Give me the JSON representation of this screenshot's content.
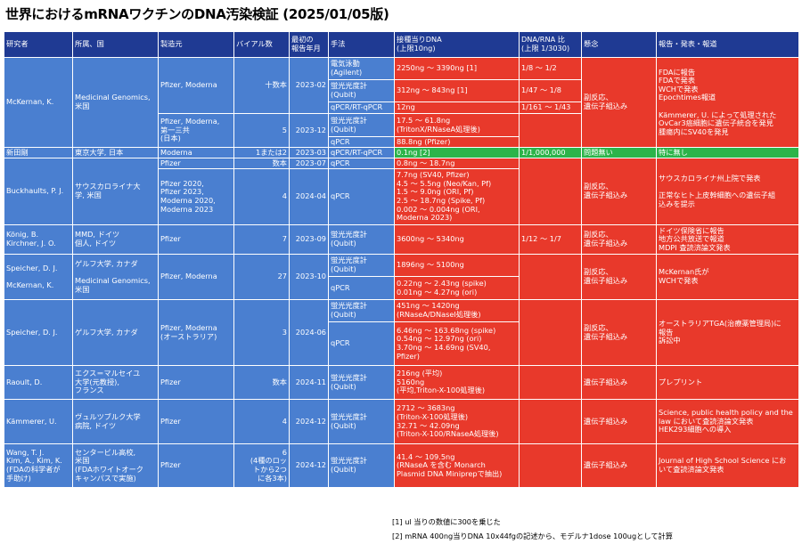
{
  "title": "世界におけるmRNAワクチンのDNA汚染検証 (2025/01/05版)",
  "headers": {
    "researcher": "研究者",
    "affiliation": "所属、国",
    "manufacturer": "製造元",
    "vials": "バイアル数",
    "date": "最初の\n報告年月",
    "method": "手法",
    "dna_per_dose": "接種当りDNA\n(上限10ng)",
    "ratio": "DNA/RNA 比\n(上限 1/3030)",
    "concern": "懸念",
    "report": "報告・発表・報道"
  },
  "rows": {
    "mckernan": {
      "researcher": "McKernan, K.",
      "affiliation": "Medicinal Genomics,\n米国",
      "mfr1": "Pfizer, Moderna",
      "vials1": "十数本",
      "date1": "2023-02",
      "m1": "電気泳動\n(Agilent)",
      "v1": "2250ng 〜 3390ng [1]",
      "r1": "1/8 〜 1/2",
      "m2": "蛍光光度計\n(Qubit)",
      "v2": "312ng 〜 843ng [1]",
      "r2": "1/47 〜 1/8",
      "m3": "qPCR/RT-qPCR",
      "v3": "12ng",
      "r3": "1/161 〜 1/43",
      "mfr2": "Pfizer, Moderna,\n第一三共\n(日本)",
      "vials2": "5",
      "date2": "2023-12",
      "m4": "蛍光光度計\n(Qubit)",
      "v4": "17.5 〜 61.8ng\n(TritonX/RNaseA処理後)",
      "m5": "qPCR",
      "v5": "88.8ng (Pfizer)",
      "concern": "副反応、\n遺伝子組込み",
      "report": "FDAに報告\nFDAで発表\nWCHで発表\nEpochtimes報道\n\nKämmerer, U. によって処理された\nOvCar3癌細胞に遺伝子統合を発見\n腫瘍内にSV40を発見"
    },
    "nitta": {
      "researcher": "新田剛",
      "affiliation": "東京大学, 日本",
      "mfr": "Moderna",
      "vials": "1または2",
      "date": "2023-03",
      "method": "qPCR/RT-qPCR",
      "value": "0.1ng [2]",
      "ratio": "1/1,000,000",
      "concern": "問題無い",
      "report": "特に無し"
    },
    "buckhaults": {
      "researcher": "Buckhaults, P. J.",
      "affiliation": "サウスカロライナ大\n学, 米国",
      "mfr1": "Pfizer",
      "vials1": "数本",
      "date1": "2023-07",
      "m1": "qPCR",
      "v1": "0.8ng 〜 18.7ng",
      "mfr2": "Pfizer 2020,\nPfizer 2023,\nModerna 2020,\nModerna 2023",
      "vials2": "4",
      "date2": "2024-04",
      "m2": "qPCR",
      "v2": "7.7ng (SV40, Pfizer)\n4.5 〜 5.5ng (Neo/Kan, Pf)\n1.5 〜 9.0ng (ORI, Pf)\n2.5 〜 18.7ng (Spike, Pf)\n0.002 〜 0.004ng (ORI,\nModerna 2023)",
      "concern": "副反応、\n遺伝子組込み",
      "report": "サウスカロライナ州上院で発表\n\n正常なヒト上皮幹細胞への遺伝子組\n込みを提示"
    },
    "konig": {
      "researcher": "König, B.\nKirchner, J. O.",
      "affiliation": "MMD, ドイツ\n個人, ドイツ",
      "mfr": "Pfizer",
      "vials": "7",
      "date": "2023-09",
      "method": "蛍光光度計\n(Qubit)",
      "value": "3600ng 〜 5340ng",
      "ratio": "1/12 〜 1/7",
      "concern": "副反応、\n遺伝子組込み",
      "report": "ドイツ保険省に報告\n地方公共放送で報道\nMDPI 査読済論文発表"
    },
    "speicher1": {
      "researcher": "Speicher, D.  J.\n\nMcKernan, K.",
      "affiliation": "ゲルフ大学, カナダ\n\nMedicinal Genomics,\n米国",
      "mfr": "Pfizer, Moderna",
      "vials": "27",
      "date": "2023-10",
      "m1": "蛍光光度計\n(Qubit)",
      "v1": "1896ng 〜 5100ng",
      "m2": "qPCR",
      "v2": "0.22ng 〜 2.43ng (spike)\n0.01ng 〜 4.27ng (ori)",
      "concern": "副反応、\n遺伝子組込み",
      "report": "McKernan氏が\nWCHで発表"
    },
    "speicher2": {
      "researcher": "Speicher, D.  J.",
      "affiliation": "ゲルフ大学, カナダ",
      "mfr": "Pfizer, Moderna\n(オーストラリア)",
      "vials": "3",
      "date": "2024-06",
      "m1": "蛍光光度計\n(Qubit)",
      "v1": "451ng 〜 1420ng\n(RNaseA/DNaseI処理後)",
      "m2": "qPCR",
      "v2": "6.46ng 〜 163.68ng (spike)\n0.54ng 〜 12.97ng (ori)\n3.70ng 〜 14.69ng (SV40,\nPfizer)",
      "concern": "副反応、\n遺伝子組込み",
      "report": "オーストラリアTGA(治療薬管理局)に\n報告\n訴訟中"
    },
    "raoult": {
      "researcher": "Raoult, D.",
      "affiliation": "エクス＝マルセイユ\n大学(元教授),\nフランス",
      "mfr": "Pfizer",
      "vials": "数本",
      "date": "2024-11",
      "method": "蛍光光度計\n(Qubit)",
      "value": "216ng (平均)\n5160ng\n(平均,Triton-X-100処理後)",
      "concern": "遺伝子組込み",
      "report": "プレプリント"
    },
    "kammerer": {
      "researcher": "Kämmerer, U.",
      "affiliation": "ヴュルツブルク大学\n病院, ドイツ",
      "mfr": "Pfizer",
      "vials": "4",
      "date": "2024-12",
      "method": "蛍光光度計\n(Qubit)",
      "value": "2712 〜 3683ng\n(Triton-X-100処理後)\n32.71 〜 42.09ng\n(Triton-X-100/RNaseA処理後)",
      "concern": "遺伝子組込み",
      "report": "Science, public health policy and the\nlaw において査読済論文発表\nHEK293細胞への導入"
    },
    "wang": {
      "researcher": "Wang, T. J.\nKim, A., Kim, K.\n(FDAの科学者が\n手助け)",
      "affiliation": "センタービル高校,\n米国\n(FDAホワイトオーク\nキャンパスで実施)",
      "mfr": "Pfizer",
      "vials": "6\n(4種のロッ\nトから2つ\nに各3本)",
      "date": "2024-12",
      "method": "蛍光光度計\n(Qubit)",
      "value": "41.4 〜 109.5ng\n(RNaseA を含む Monarch\nPlasmid DNA Miniprepで抽出)",
      "concern": "遺伝子組込み",
      "report": "Journal of High School Science にお\nいて査読済論文発表"
    }
  },
  "footnotes": {
    "f1": "[1] ul 当りの数値に300を乗じた",
    "f2": "[2] mRNA 400ng当りDNA 10x44fgの記述から、モデルナ1dose 100ugとして計算"
  },
  "colors": {
    "header": "#1f3a93",
    "blue": "#4a7fd0",
    "red": "#e8392b",
    "green": "#2cb44a"
  }
}
